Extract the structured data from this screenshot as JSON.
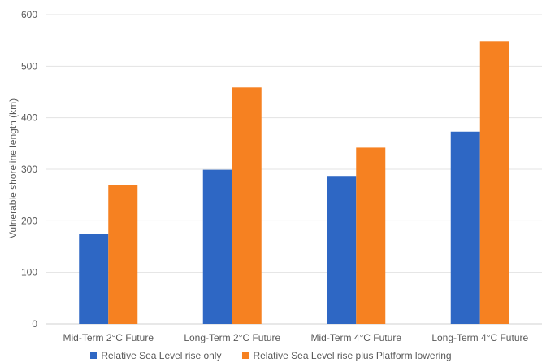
{
  "chart_data": {
    "type": "bar",
    "title": "",
    "xlabel": "",
    "ylabel": "Vulnerable shoreline length (km)",
    "ylim": [
      0,
      600
    ],
    "yticks": [
      0,
      100,
      200,
      300,
      400,
      500,
      600
    ],
    "grid": true,
    "legend_position": "bottom",
    "categories": [
      "Mid-Term 2°C Future",
      "Long-Term 2°C Future",
      "Mid-Term 4°C Future",
      "Long-Term 4°C Future"
    ],
    "series": [
      {
        "name": "Relative Sea Level rise only",
        "color": "#2e67c4",
        "values": [
          174,
          299,
          287,
          373
        ]
      },
      {
        "name": "Relative Sea Level rise plus Platform lowering",
        "color": "#f68121",
        "values": [
          270,
          459,
          342,
          549
        ]
      }
    ]
  }
}
